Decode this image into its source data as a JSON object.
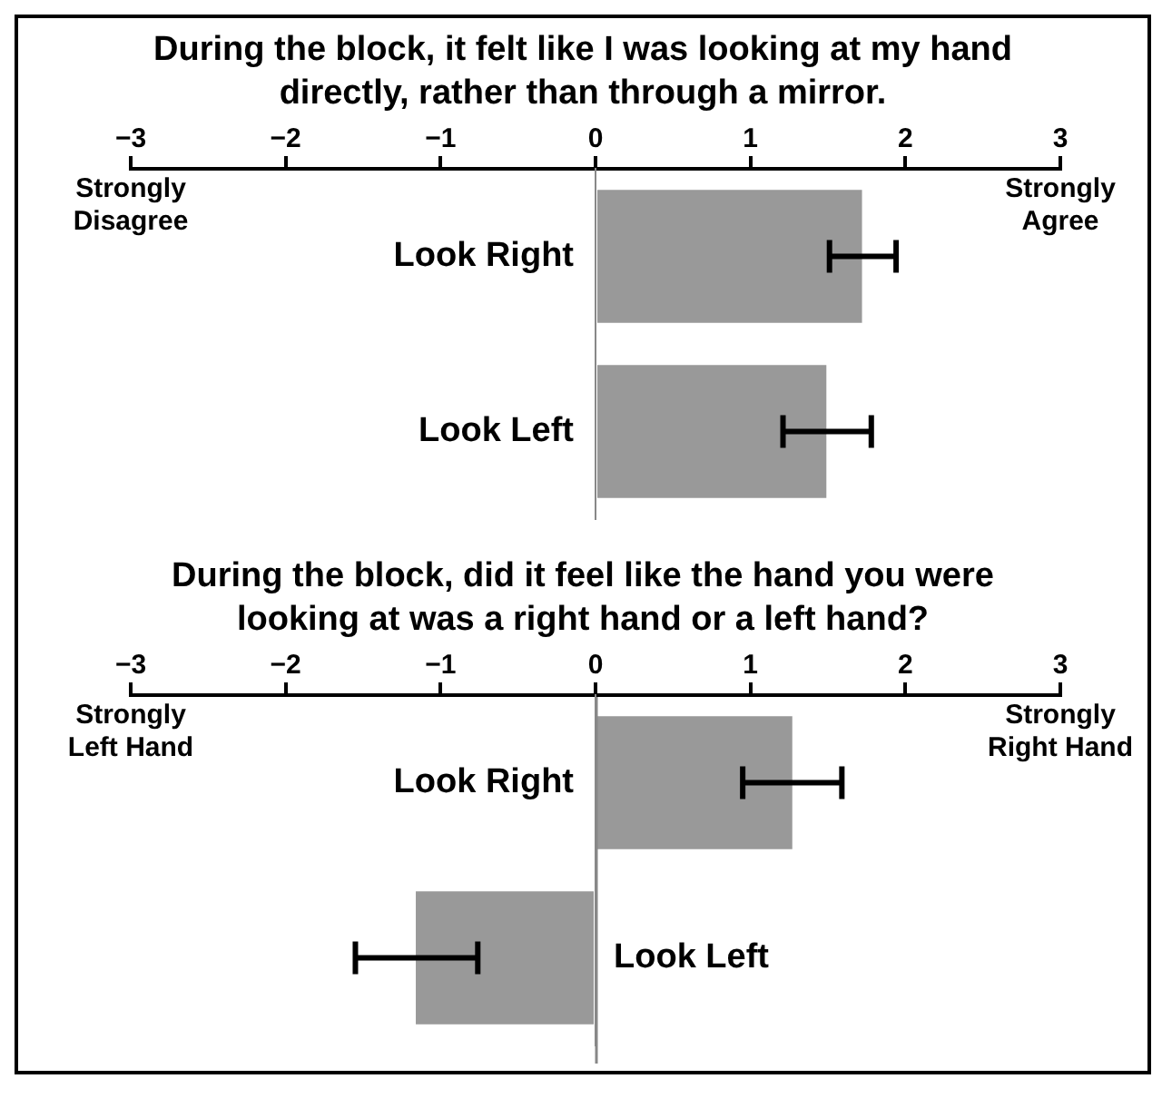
{
  "chart_data": [
    {
      "type": "bar",
      "orientation": "horizontal",
      "title": "During the block, it felt like I was looking at my hand directly, rather than through a mirror.",
      "categories": [
        "Look Right",
        "Look Left"
      ],
      "values": [
        1.72,
        1.49
      ],
      "errors": [
        [
          1.51,
          1.94
        ],
        [
          1.21,
          1.78
        ]
      ],
      "color": "#999999",
      "xlim": [
        -3,
        3
      ],
      "xticks": [
        {
          "value": -3,
          "label": "−3"
        },
        {
          "value": -2,
          "label": "−2"
        },
        {
          "value": -1,
          "label": "−1"
        },
        0,
        1,
        2,
        3
      ],
      "grid": false,
      "legend": false,
      "annotations": [
        "Strongly\nDisagree",
        "Strongly\nAgree"
      ]
    },
    {
      "type": "bar",
      "orientation": "horizontal",
      "title": "During the block, did it feel like the hand you were looking at was a right hand or a left hand?",
      "categories": [
        "Look Right",
        "Look Left"
      ],
      "values": [
        1.27,
        -1.16
      ],
      "errors": [
        [
          0.95,
          1.59
        ],
        [
          -1.55,
          -0.76
        ]
      ],
      "color": "#999999",
      "xlim": [
        -3,
        3
      ],
      "xticks": [
        {
          "value": -3,
          "label": "−3"
        },
        {
          "value": -2,
          "label": "−2"
        },
        {
          "value": -1,
          "label": "−1"
        },
        0,
        1,
        2,
        3
      ],
      "grid": false,
      "legend": false,
      "ref_lines": [
        {
          "axis": "x",
          "value": 0,
          "color": "#888888"
        }
      ],
      "annotations": [
        "Strongly\nLeft Hand",
        "Strongly\nRight Hand"
      ]
    }
  ]
}
